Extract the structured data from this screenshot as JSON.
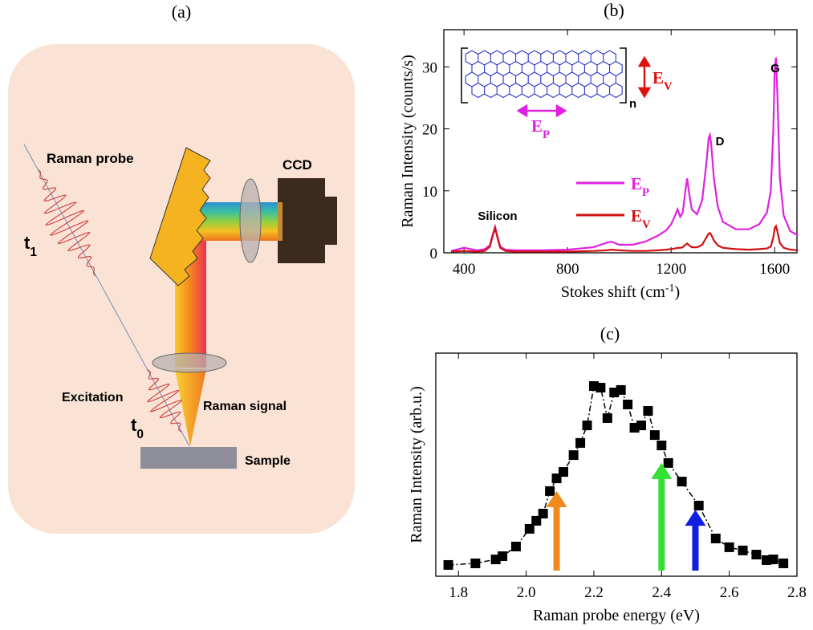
{
  "panel_a": {
    "label": "(a)",
    "raman_probe": "Raman probe",
    "t1": {
      "text": "t",
      "subscript": "1"
    },
    "ccd": "CCD",
    "excitation": "Excitation",
    "t0": {
      "text": "t",
      "subscript": "0"
    },
    "raman_signal": "Raman signal",
    "sample": "Sample"
  },
  "chart_data": [
    {
      "type": "line",
      "panel_label": "(b)",
      "ylabel": "Raman Intensity (counts/s)",
      "xlabel": {
        "text": "Stokes shift (cm",
        "superscript": "-1",
        "after": ")"
      },
      "x": [
        350,
        400,
        450,
        480,
        500,
        510,
        520,
        530,
        540,
        560,
        600,
        700,
        800,
        900,
        950,
        970,
        1000,
        1050,
        1100,
        1150,
        1180,
        1200,
        1215,
        1225,
        1235,
        1245,
        1255,
        1262,
        1270,
        1280,
        1300,
        1320,
        1335,
        1345,
        1350,
        1355,
        1365,
        1380,
        1400,
        1450,
        1500,
        1540,
        1570,
        1585,
        1595,
        1600,
        1605,
        1610,
        1620,
        1635,
        1660,
        1690
      ],
      "series": [
        {
          "name": {
            "text": "E",
            "subscript": "P"
          },
          "color": "#e020e0",
          "values": [
            0.3,
            0.8,
            0.4,
            0.6,
            1.2,
            2.8,
            4.2,
            2.5,
            1.0,
            0.5,
            0.4,
            0.4,
            0.5,
            0.9,
            1.6,
            1.8,
            1.3,
            1.3,
            1.8,
            2.8,
            3.6,
            4.6,
            6.0,
            7.0,
            5.8,
            6.5,
            10.0,
            12.0,
            9.5,
            7.0,
            6.2,
            8.5,
            14.0,
            18.5,
            19.0,
            17.5,
            12.0,
            7.5,
            5.0,
            3.8,
            3.8,
            4.6,
            6.5,
            10.0,
            20.0,
            30.0,
            31.5,
            26.0,
            12.0,
            6.0,
            3.5,
            2.8
          ]
        },
        {
          "name": {
            "text": "E",
            "subscript": "V"
          },
          "color": "#d01010",
          "values": [
            0.2,
            0.3,
            0.2,
            0.3,
            1.0,
            2.6,
            4.0,
            2.3,
            0.8,
            0.3,
            0.2,
            0.2,
            0.2,
            0.3,
            0.4,
            0.5,
            0.4,
            0.3,
            0.3,
            0.4,
            0.5,
            0.6,
            0.7,
            0.8,
            0.8,
            0.9,
            1.3,
            1.5,
            1.2,
            0.9,
            0.9,
            1.3,
            2.4,
            3.1,
            3.2,
            2.9,
            2.0,
            1.2,
            0.8,
            0.6,
            0.5,
            0.6,
            0.7,
            1.0,
            2.5,
            4.0,
            4.3,
            3.5,
            1.6,
            0.8,
            0.5,
            0.4
          ]
        }
      ],
      "xlim": [
        322,
        1686
      ],
      "ylim": [
        0,
        36
      ],
      "xticks": [
        400,
        800,
        1200,
        1600
      ],
      "yticks": [
        0,
        10,
        20,
        30
      ],
      "annotations": [
        "Silicon",
        "D",
        "G"
      ],
      "inset": {
        "ev": {
          "text": "E",
          "subscript": "V"
        },
        "ep": {
          "text": "E",
          "subscript": "P"
        },
        "n": "n"
      }
    },
    {
      "type": "line",
      "markers": "square",
      "color": "#000000",
      "panel_label": "(c)",
      "ylabel": "Raman Intensity (arb.u.)",
      "xlabel": "Raman probe energy (eV)",
      "x": [
        1.77,
        1.85,
        1.91,
        1.93,
        1.97,
        2.01,
        2.03,
        2.05,
        2.07,
        2.09,
        2.11,
        2.14,
        2.16,
        2.18,
        2.2,
        2.22,
        2.24,
        2.26,
        2.28,
        2.3,
        2.32,
        2.34,
        2.36,
        2.38,
        2.4,
        2.42,
        2.46,
        2.51,
        2.56,
        2.6,
        2.64,
        2.68,
        2.71,
        2.73,
        2.76
      ],
      "values": [
        0,
        0.9,
        3.1,
        4.9,
        10.3,
        20.2,
        24.7,
        28.7,
        41.3,
        48.4,
        52,
        61.4,
        68.2,
        78,
        100,
        99.1,
        82.1,
        96.4,
        97.8,
        89.7,
        76.7,
        78,
        86.1,
        72.6,
        66.8,
        57,
        46.6,
        33.2,
        14.8,
        9.9,
        8.1,
        5.8,
        2.7,
        3.1,
        0.9
      ],
      "xlim": [
        1.733,
        2.8
      ],
      "ylim": [
        -6.3,
        118.4
      ],
      "xticks": [
        1.8,
        {
          "value": 2,
          "label": "2.0"
        },
        2.2,
        2.4,
        2.6,
        2.8
      ],
      "arrows": [
        {
          "x": 2.09,
          "y": 41.3,
          "color": "#f08a1c"
        },
        {
          "x": 2.4,
          "y": 57,
          "color": "#33e033"
        },
        {
          "x": 2.5,
          "y": 30.9,
          "color": "#1020e0"
        }
      ]
    }
  ]
}
